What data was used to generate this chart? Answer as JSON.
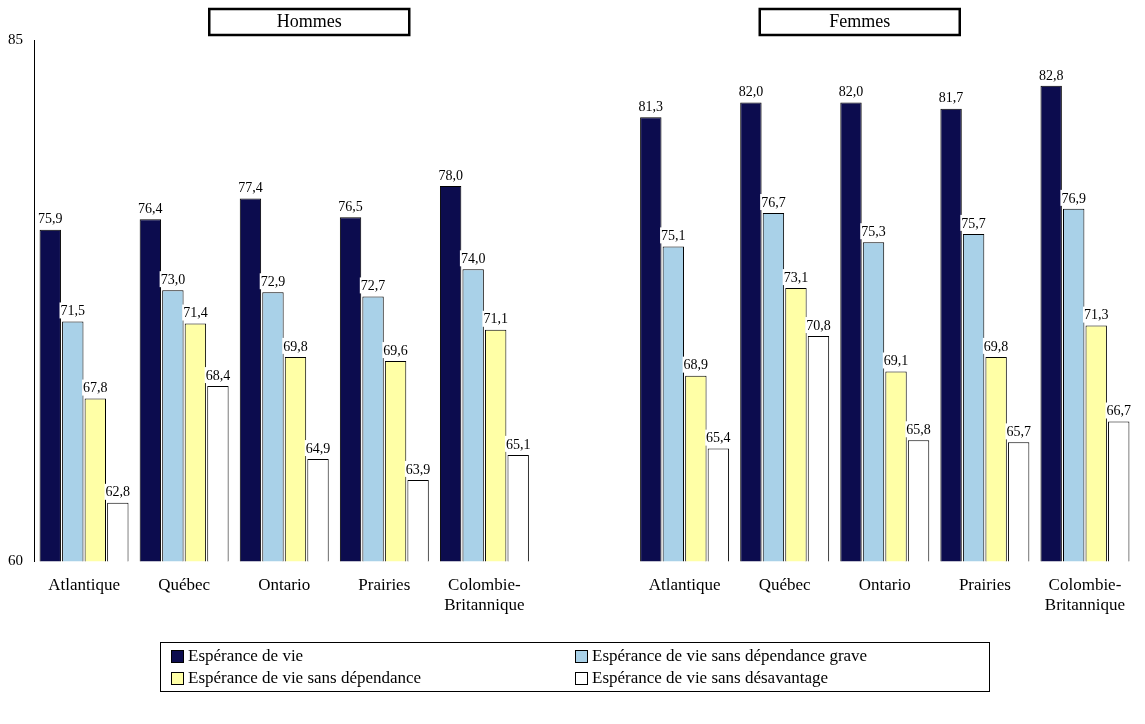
{
  "chart_data": {
    "type": "bar",
    "categories": [
      "Atlantique",
      "Québec",
      "Ontario",
      "Prairies",
      "Colombie-Britannique",
      null,
      "Atlantique",
      "Québec",
      "Ontario",
      "Prairies",
      "Colombie-Britannique"
    ],
    "series": [
      {
        "name": "Espérance de vie",
        "color": "#0c0c4e",
        "values": [
          75.9,
          76.4,
          77.4,
          76.5,
          78.0,
          null,
          81.3,
          82.0,
          82.0,
          81.7,
          82.8
        ],
        "value_labels": [
          "75,9",
          "76,4",
          "77,4",
          "76,5",
          "78,0",
          null,
          "81,3",
          "82,0",
          "82,0",
          "81,7",
          "82,8"
        ]
      },
      {
        "name": "Espérance de vie sans dépendance grave",
        "color": "#a9d1e8",
        "values": [
          71.5,
          73.0,
          72.9,
          72.7,
          74.0,
          null,
          75.1,
          76.7,
          75.3,
          75.7,
          76.9
        ],
        "value_labels": [
          "71,5",
          "73,0",
          "72,9",
          "72,7",
          "74,0",
          null,
          "75,1",
          "76,7",
          "75,3",
          "75,7",
          "76,9"
        ]
      },
      {
        "name": "Espérance de vie sans dépendance",
        "color": "#ffffa6",
        "values": [
          67.8,
          71.4,
          69.8,
          69.6,
          71.1,
          null,
          68.9,
          73.1,
          69.1,
          69.8,
          71.3
        ],
        "value_labels": [
          "67,8",
          "71,4",
          "69,8",
          "69,6",
          "71,1",
          null,
          "68,9",
          "73,1",
          "69,1",
          "69,8",
          "71,3"
        ]
      },
      {
        "name": "Espérance de vie sans désavantage",
        "color": "#ffffff",
        "values": [
          62.8,
          68.4,
          64.9,
          63.9,
          65.1,
          null,
          65.4,
          70.8,
          65.8,
          65.7,
          66.7
        ],
        "value_labels": [
          "62,8",
          "68,4",
          "64,9",
          "63,9",
          "65,1",
          null,
          "65,4",
          "70,8",
          "65,8",
          "65,7",
          "66,7"
        ]
      }
    ],
    "ylim": [
      60,
      85
    ],
    "yticks": [
      60,
      85
    ],
    "grid": false,
    "legend": "bottom",
    "annotations": [
      "Hommes",
      "Femmes"
    ]
  }
}
